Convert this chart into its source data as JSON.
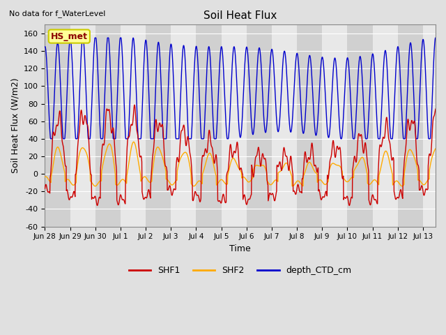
{
  "title": "Soil Heat Flux",
  "top_left_text": "No data for f_WaterLevel",
  "box_label": "HS_met",
  "ylabel": "Soil Heat Flux (W/m2)",
  "xlabel": "Time",
  "ylim": [
    -60,
    170
  ],
  "yticks": [
    -60,
    -40,
    -20,
    0,
    20,
    40,
    60,
    80,
    100,
    120,
    140,
    160
  ],
  "fig_bg": "#e0e0e0",
  "plot_bg_light": "#e8e8e8",
  "plot_bg_dark": "#d0d0d0",
  "grid_color": "#ffffff",
  "shf1_color": "#cc0000",
  "shf2_color": "#ffaa00",
  "depth_color": "#0000cc",
  "tick_labels": [
    "Jun 28",
    "Jun 29",
    "Jun 30",
    "Jul 1",
    "Jul 2",
    "Jul 3",
    "Jul 4",
    "Jul 5",
    "Jul 6",
    "Jul 7",
    "Jul 8",
    "Jul 9",
    "Jul 10",
    "Jul 11",
    "Jul 12",
    "Jul 13"
  ],
  "num_days": 15.5,
  "n_points_per_day": 96
}
